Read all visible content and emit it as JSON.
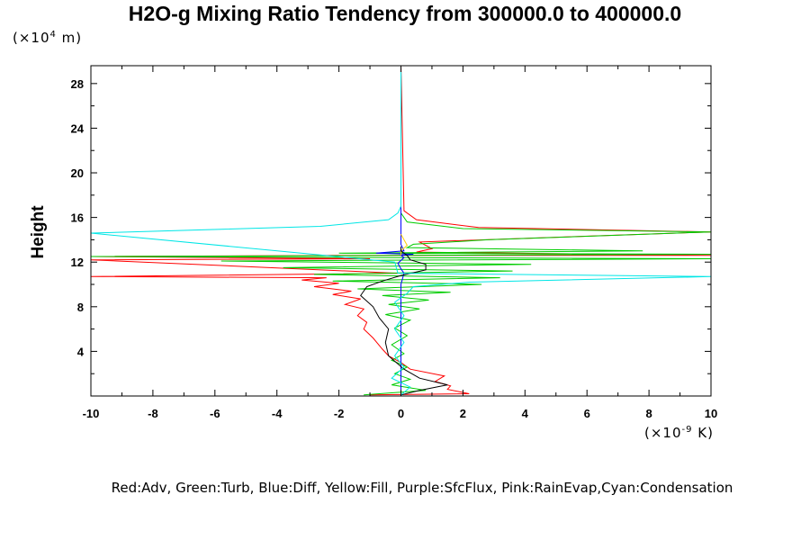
{
  "chart_data": {
    "type": "line",
    "title": "H2O-g Mixing Ratio Tendency from 300000.0 to 400000.0",
    "ylabel": "Height",
    "y_unit_prefix": "(×10",
    "y_unit_exp": "4",
    "y_unit_suffix": " m)",
    "x_unit_prefix": "(×10",
    "x_unit_exp": "-9",
    "x_unit_suffix": " K)",
    "legend_text": "Red:Adv, Green:Turb, Blue:Diff, Yellow:Fill, Purple:SfcFlux, Pink:RainEvap,Cyan:Condensation",
    "xlim": [
      -10,
      10
    ],
    "ylim": [
      0,
      29.6
    ],
    "xticks": [
      "-10",
      "-8",
      "-6",
      "-4",
      "-2",
      "0",
      "2",
      "4",
      "6",
      "8",
      "10"
    ],
    "yticks": [
      "4",
      "8",
      "12",
      "16",
      "20",
      "24",
      "28"
    ],
    "series": [
      {
        "color": "#ff0000",
        "points": [
          [
            -1.0,
            0.1
          ],
          [
            2.2,
            0.2
          ],
          [
            1.5,
            0.6
          ],
          [
            1.6,
            0.9
          ],
          [
            1.1,
            1.3
          ],
          [
            1.4,
            1.8
          ],
          [
            0.3,
            2.4
          ],
          [
            0.0,
            3.0
          ],
          [
            -0.4,
            3.6
          ],
          [
            -0.6,
            4.2
          ],
          [
            -0.9,
            5.2
          ],
          [
            -1.2,
            6.0
          ],
          [
            -1.1,
            6.6
          ],
          [
            -1.4,
            7.2
          ],
          [
            -1.2,
            7.8
          ],
          [
            -1.8,
            8.2
          ],
          [
            -1.3,
            8.7
          ],
          [
            -2.2,
            9.1
          ],
          [
            -1.6,
            9.4
          ],
          [
            -2.8,
            9.8
          ],
          [
            -2.0,
            10.1
          ],
          [
            -3.2,
            10.4
          ],
          [
            -2.4,
            10.6
          ],
          [
            -10.0,
            10.7
          ],
          [
            -0.1,
            11.0
          ],
          [
            -10.0,
            12.2
          ],
          [
            -1.0,
            12.3
          ],
          [
            -10.0,
            12.5
          ],
          [
            -2.0,
            12.6
          ],
          [
            10.0,
            12.6
          ],
          [
            0.5,
            12.9
          ],
          [
            1.0,
            13.2
          ],
          [
            0.6,
            13.8
          ],
          [
            10.0,
            14.7
          ],
          [
            2.5,
            15.1
          ],
          [
            0.5,
            15.8
          ],
          [
            0.1,
            16.6
          ],
          [
            0.0,
            29.6
          ]
        ]
      },
      {
        "color": "#00cc00",
        "points": [
          [
            -1.2,
            0.1
          ],
          [
            0.8,
            0.5
          ],
          [
            -0.3,
            1.0
          ],
          [
            0.3,
            1.5
          ],
          [
            -0.2,
            2.0
          ],
          [
            0.2,
            2.6
          ],
          [
            -0.3,
            3.2
          ],
          [
            0.1,
            3.8
          ],
          [
            -0.3,
            4.6
          ],
          [
            0.2,
            5.4
          ],
          [
            -0.2,
            6.1
          ],
          [
            0.3,
            6.8
          ],
          [
            -0.5,
            7.3
          ],
          [
            0.6,
            7.8
          ],
          [
            -0.4,
            8.2
          ],
          [
            0.9,
            8.6
          ],
          [
            -0.6,
            9.0
          ],
          [
            1.6,
            9.3
          ],
          [
            -1.4,
            9.6
          ],
          [
            2.6,
            10.0
          ],
          [
            -2.2,
            10.3
          ],
          [
            3.2,
            10.6
          ],
          [
            -2.8,
            10.9
          ],
          [
            3.6,
            11.2
          ],
          [
            -3.8,
            11.5
          ],
          [
            4.2,
            11.8
          ],
          [
            -5.8,
            12.1
          ],
          [
            10.0,
            12.3
          ],
          [
            -10.0,
            12.5
          ],
          [
            10.0,
            12.7
          ],
          [
            -2.0,
            12.8
          ],
          [
            7.8,
            13.0
          ],
          [
            0.2,
            13.3
          ],
          [
            0.4,
            13.6
          ],
          [
            2.8,
            14.0
          ],
          [
            10.0,
            14.7
          ],
          [
            2.0,
            15.0
          ],
          [
            0.2,
            15.6
          ],
          [
            0.0,
            16.4
          ],
          [
            0.0,
            29.6
          ]
        ]
      },
      {
        "color": "#0000ff",
        "points": [
          [
            0.0,
            0.1
          ],
          [
            0.0,
            10.0
          ],
          [
            0.1,
            11.0
          ],
          [
            0.0,
            11.4
          ],
          [
            -0.1,
            11.9
          ],
          [
            0.1,
            12.4
          ],
          [
            0.0,
            12.6
          ],
          [
            0.4,
            12.7
          ],
          [
            -0.8,
            12.8
          ],
          [
            0.1,
            13.0
          ],
          [
            0.0,
            13.6
          ],
          [
            0.0,
            29.6
          ]
        ]
      },
      {
        "color": "#ffcc00",
        "points": [
          [
            0.0,
            12.6
          ],
          [
            0.0,
            13.0
          ],
          [
            0.2,
            13.5
          ],
          [
            0.1,
            14.0
          ],
          [
            0.0,
            14.5
          ]
        ]
      },
      {
        "color": "#000000",
        "points": [
          [
            0.0,
            0.1
          ],
          [
            0.6,
            0.5
          ],
          [
            1.5,
            1.0
          ],
          [
            0.6,
            1.6
          ],
          [
            0.1,
            2.4
          ],
          [
            -0.4,
            3.6
          ],
          [
            -0.5,
            4.8
          ],
          [
            -0.4,
            6.0
          ],
          [
            -0.7,
            7.0
          ],
          [
            -0.9,
            8.0
          ],
          [
            -1.3,
            9.0
          ],
          [
            -1.1,
            9.8
          ],
          [
            -0.6,
            10.3
          ],
          [
            0.0,
            10.8
          ],
          [
            0.8,
            11.3
          ],
          [
            0.8,
            11.8
          ],
          [
            0.3,
            12.2
          ],
          [
            0.2,
            12.6
          ],
          [
            0.0,
            13.0
          ],
          [
            0.0,
            13.4
          ]
        ]
      },
      {
        "color": "#00e6e6",
        "points": [
          [
            0.0,
            0.1
          ],
          [
            0.3,
            0.8
          ],
          [
            -0.3,
            1.6
          ],
          [
            0.1,
            2.6
          ],
          [
            -0.2,
            3.6
          ],
          [
            0.1,
            4.8
          ],
          [
            -0.2,
            6.0
          ],
          [
            0.1,
            7.2
          ],
          [
            -0.2,
            8.4
          ],
          [
            0.2,
            9.2
          ],
          [
            0.4,
            9.8
          ],
          [
            2.2,
            10.2
          ],
          [
            10.0,
            10.7
          ],
          [
            -0.1,
            11.0
          ],
          [
            -0.2,
            12.0
          ],
          [
            -10.0,
            14.6
          ],
          [
            -2.6,
            15.2
          ],
          [
            -0.4,
            15.8
          ],
          [
            -0.1,
            16.4
          ],
          [
            0.0,
            17.0
          ],
          [
            0.0,
            29.6
          ]
        ]
      }
    ]
  }
}
